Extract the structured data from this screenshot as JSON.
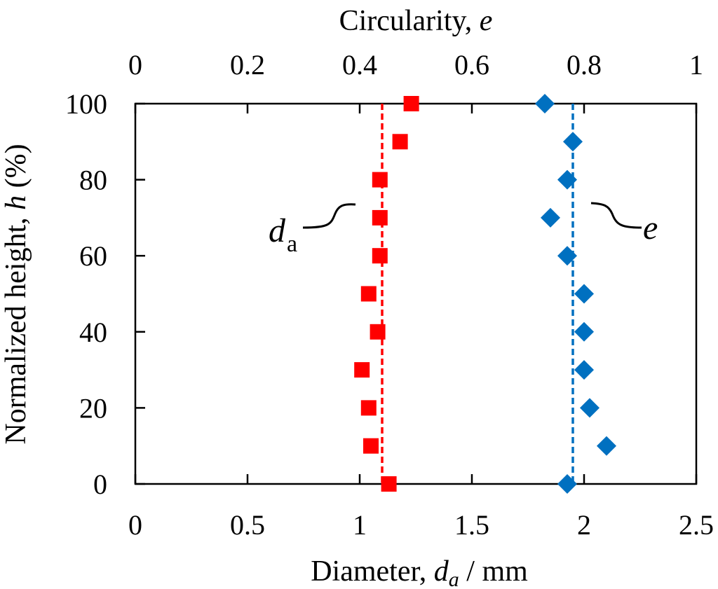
{
  "chart_data": {
    "type": "scatter",
    "title": "",
    "bottom_axis": {
      "label_prefix": "Diameter, ",
      "label_var": "d",
      "label_var_sub": "a",
      "label_suffix": " / mm",
      "range": [
        0,
        2.5
      ],
      "ticks": [
        "0",
        "0.5",
        "1",
        "1.5",
        "2",
        "2.5"
      ],
      "tick_values": [
        0,
        0.5,
        1,
        1.5,
        2,
        2.5
      ]
    },
    "top_axis": {
      "label_prefix": "Circularity, ",
      "label_var": "e",
      "range": [
        0,
        1
      ],
      "ticks": [
        "0",
        "0.2",
        "0.4",
        "0.6",
        "0.8",
        "1"
      ],
      "tick_values": [
        0,
        0.2,
        0.4,
        0.6,
        0.8,
        1
      ]
    },
    "left_axis": {
      "label_prefix": "Normalized height, ",
      "label_var": "h",
      "label_suffix": " (%)",
      "range": [
        0,
        100
      ],
      "ticks": [
        "0",
        "20",
        "40",
        "60",
        "80",
        "100"
      ],
      "tick_values": [
        0,
        20,
        40,
        60,
        80,
        100
      ]
    },
    "series": [
      {
        "name": "d_a",
        "annotation_main": "d",
        "annotation_sub": "a",
        "axis": "bottom",
        "marker": "square",
        "color": "#ff0000",
        "mean": 1.1,
        "points": [
          {
            "x": 1.23,
            "y": 100
          },
          {
            "x": 1.18,
            "y": 90
          },
          {
            "x": 1.09,
            "y": 80
          },
          {
            "x": 1.09,
            "y": 70
          },
          {
            "x": 1.09,
            "y": 60
          },
          {
            "x": 1.04,
            "y": 50
          },
          {
            "x": 1.08,
            "y": 40
          },
          {
            "x": 1.01,
            "y": 30
          },
          {
            "x": 1.04,
            "y": 20
          },
          {
            "x": 1.05,
            "y": 10
          },
          {
            "x": 1.13,
            "y": 0
          }
        ]
      },
      {
        "name": "e",
        "annotation_main": "e",
        "axis": "top",
        "marker": "diamond",
        "color": "#0070c0",
        "mean": 0.78,
        "points": [
          {
            "x": 0.73,
            "y": 100
          },
          {
            "x": 0.78,
            "y": 90
          },
          {
            "x": 0.77,
            "y": 80
          },
          {
            "x": 0.74,
            "y": 70
          },
          {
            "x": 0.77,
            "y": 60
          },
          {
            "x": 0.8,
            "y": 50
          },
          {
            "x": 0.8,
            "y": 40
          },
          {
            "x": 0.8,
            "y": 30
          },
          {
            "x": 0.81,
            "y": 20
          },
          {
            "x": 0.84,
            "y": 10
          },
          {
            "x": 0.77,
            "y": 0
          }
        ]
      }
    ]
  }
}
